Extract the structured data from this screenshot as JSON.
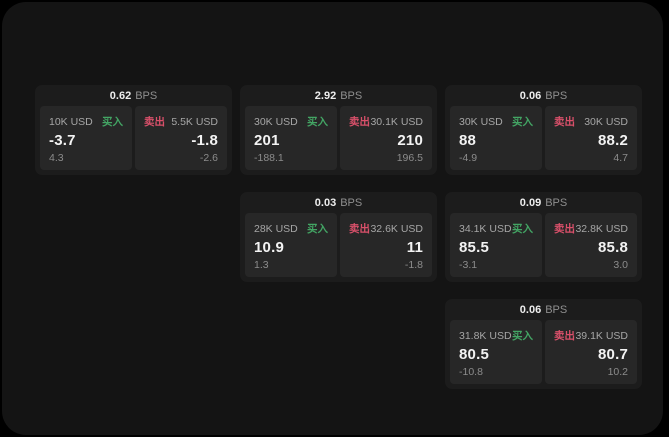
{
  "labels": {
    "bps_unit": "BPS",
    "buy": "买入",
    "sell": "卖出"
  },
  "colors": {
    "buy_green": "#43a564",
    "sell_red": "#d9506a",
    "window_bg": "#141414",
    "card_bg": "#1c1c1c",
    "tile_bg": "#272727"
  },
  "cards": [
    {
      "row": 1,
      "col": 1,
      "bps": "0.62",
      "buy": {
        "amount": "10K USD",
        "price": "-3.7",
        "delta": "4.3"
      },
      "sell": {
        "amount": "5.5K USD",
        "price": "-1.8",
        "delta": "-2.6"
      }
    },
    {
      "row": 1,
      "col": 2,
      "bps": "2.92",
      "buy": {
        "amount": "30K USD",
        "price": "201",
        "delta": "-188.1"
      },
      "sell": {
        "amount": "30.1K USD",
        "price": "210",
        "delta": "196.5"
      }
    },
    {
      "row": 1,
      "col": 3,
      "bps": "0.06",
      "buy": {
        "amount": "30K USD",
        "price": "88",
        "delta": "-4.9"
      },
      "sell": {
        "amount": "30K USD",
        "price": "88.2",
        "delta": "4.7"
      }
    },
    {
      "row": 2,
      "col": 2,
      "bps": "0.03",
      "buy": {
        "amount": "28K USD",
        "price": "10.9",
        "delta": "1.3"
      },
      "sell": {
        "amount": "32.6K USD",
        "price": "11",
        "delta": "-1.8"
      }
    },
    {
      "row": 2,
      "col": 3,
      "bps": "0.09",
      "buy": {
        "amount": "34.1K USD",
        "price": "85.5",
        "delta": "-3.1"
      },
      "sell": {
        "amount": "32.8K USD",
        "price": "85.8",
        "delta": "3.0"
      }
    },
    {
      "row": 3,
      "col": 3,
      "bps": "0.06",
      "buy": {
        "amount": "31.8K USD",
        "price": "80.5",
        "delta": "-10.8"
      },
      "sell": {
        "amount": "39.1K USD",
        "price": "80.7",
        "delta": "10.2"
      }
    }
  ]
}
